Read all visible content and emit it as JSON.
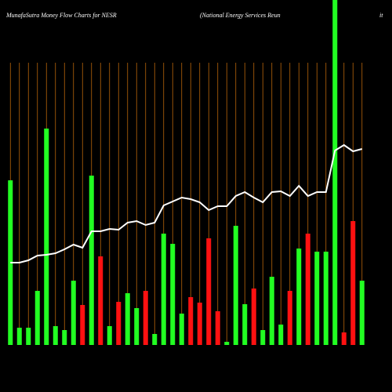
{
  "chart_data": {
    "type": "bar",
    "title": "MunafaSutra  Money Flow  Charts for NESR",
    "subtitle": "(National Energy Services Reun",
    "subtitle_end": "it",
    "values": [
      210,
      22,
      22,
      69,
      276,
      24,
      19,
      82,
      51,
      216,
      113,
      24,
      55,
      66,
      47,
      69,
      14,
      142,
      129,
      40,
      61,
      54,
      136,
      43,
      4,
      152,
      52,
      72,
      19,
      87,
      26,
      69,
      123,
      142,
      119,
      119,
      440,
      16,
      158,
      82
    ],
    "colors": [
      "#22ff22",
      "#22ff22",
      "#22ff22",
      "#22ff22",
      "#22ff22",
      "#22ff22",
      "#22ff22",
      "#22ff22",
      "#ff1111",
      "#22ff22",
      "#ff1111",
      "#22ff22",
      "#ff1111",
      "#22ff22",
      "#22ff22",
      "#ff1111",
      "#22ff22",
      "#22ff22",
      "#22ff22",
      "#22ff22",
      "#ff1111",
      "#ff1111",
      "#ff1111",
      "#ff1111",
      "#22ff22",
      "#22ff22",
      "#22ff22",
      "#ff1111",
      "#22ff22",
      "#22ff22",
      "#22ff22",
      "#ff1111",
      "#22ff22",
      "#ff1111",
      "#22ff22",
      "#22ff22",
      "#22ff22",
      "#ff1111",
      "#ff1111",
      "#22ff22"
    ],
    "line_values": [
      105,
      105,
      108,
      114,
      115,
      117,
      122,
      128,
      124,
      145,
      145,
      148,
      147,
      156,
      158,
      153,
      156,
      178,
      183,
      188,
      186,
      182,
      172,
      177,
      177,
      190,
      195,
      188,
      182,
      195,
      196,
      190,
      203,
      190,
      195,
      195,
      248,
      255,
      247,
      250
    ],
    "line_color": "#ffffff",
    "grid_color": "#b8650a",
    "ylim": [
      0,
      440
    ]
  }
}
